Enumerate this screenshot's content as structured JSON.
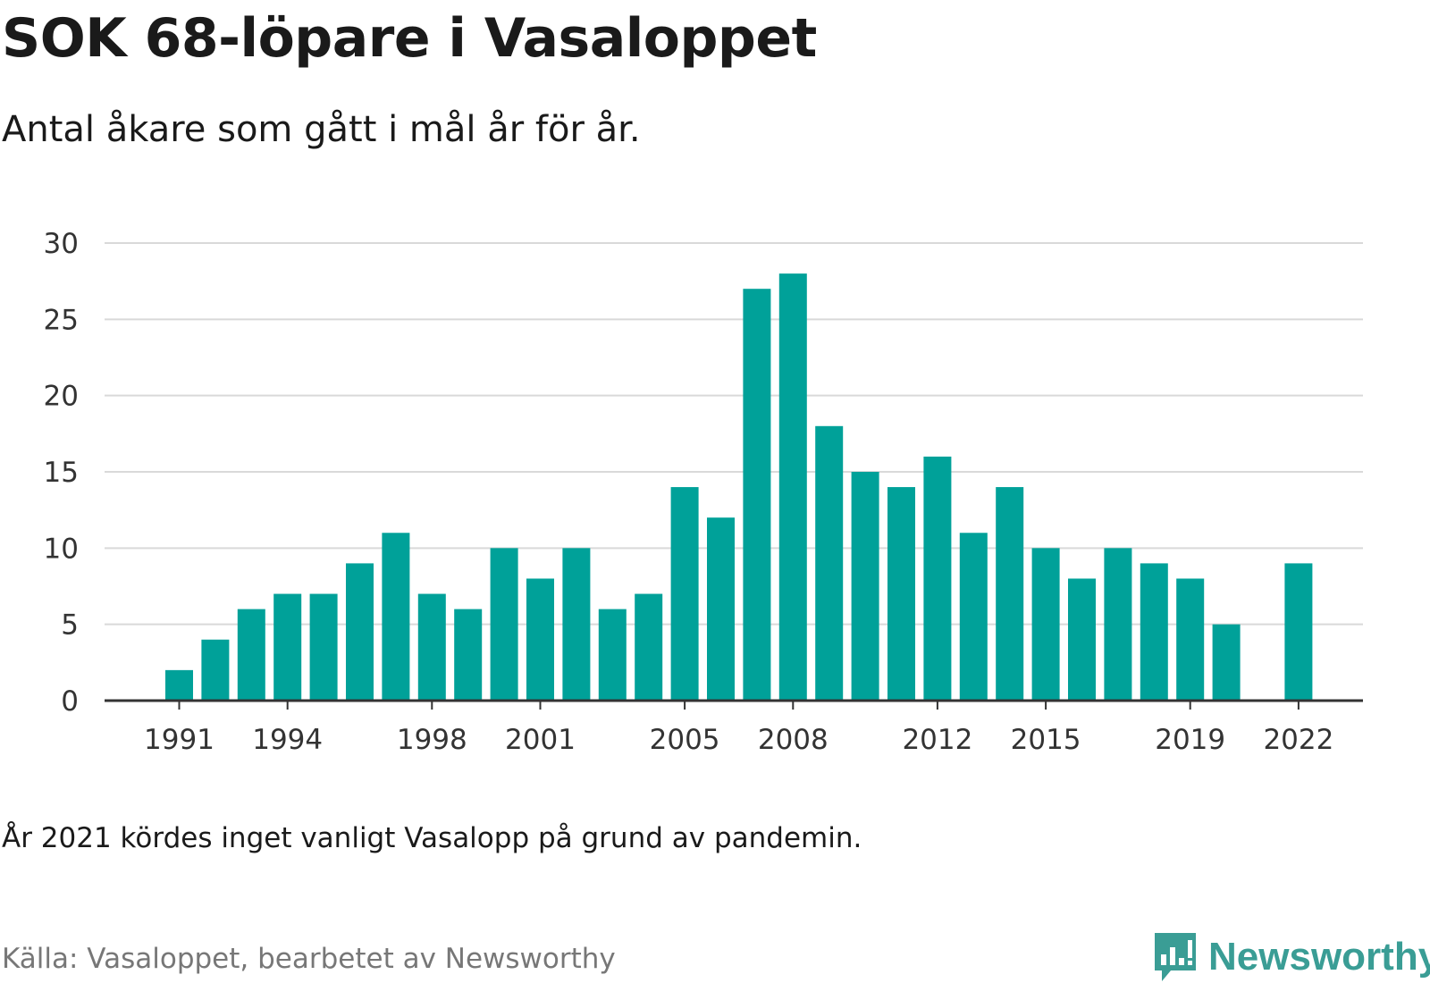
{
  "header": {
    "title": "SOK 68-löpare i Vasaloppet",
    "subtitle": "Antal åkare som gått i mål år för år."
  },
  "footer": {
    "note": "År 2021 kördes inget vanligt Vasalopp på grund av pandemin.",
    "source": "Källa: Vasaloppet, bearbetet av Newsworthy",
    "brand_name": "Newsworthy",
    "brand_icon": "bar-chart-bubble-icon"
  },
  "colors": {
    "bar": "#00a199",
    "grid": "#d9d9d9",
    "axis": "#333333",
    "brand": "#3a9d95"
  },
  "chart_data": {
    "type": "bar",
    "categories": [
      "1991",
      "1992",
      "1993",
      "1994",
      "1995",
      "1996",
      "1997",
      "1998",
      "1999",
      "2000",
      "2001",
      "2002",
      "2003",
      "2004",
      "2005",
      "2006",
      "2007",
      "2008",
      "2009",
      "2010",
      "2011",
      "2012",
      "2013",
      "2014",
      "2015",
      "2016",
      "2017",
      "2018",
      "2019",
      "2020",
      "2021",
      "2022"
    ],
    "values": [
      2,
      4,
      6,
      7,
      7,
      9,
      11,
      7,
      6,
      10,
      8,
      10,
      6,
      7,
      14,
      12,
      27,
      28,
      18,
      15,
      14,
      16,
      11,
      14,
      10,
      8,
      10,
      9,
      8,
      5,
      null,
      9
    ],
    "x_tick_labels": [
      "1991",
      "1994",
      "1998",
      "2001",
      "2005",
      "2008",
      "2012",
      "2015",
      "2019",
      "2022"
    ],
    "y_ticks": [
      0,
      5,
      10,
      15,
      20,
      25,
      30
    ],
    "ylim": [
      0,
      30
    ],
    "grid": true,
    "legend": "none"
  }
}
